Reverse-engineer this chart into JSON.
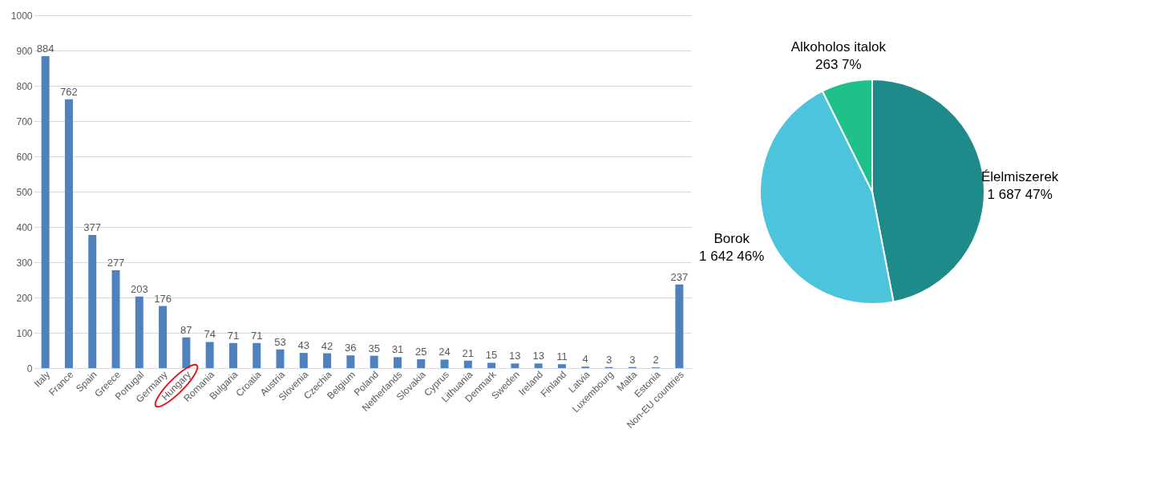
{
  "chart_data": [
    {
      "type": "bar",
      "categories": [
        "Italy",
        "France",
        "Spain",
        "Greece",
        "Portugal",
        "Germany",
        "Hungary",
        "Romania",
        "Bulgaria",
        "Croatia",
        "Austria",
        "Slovenia",
        "Czechia",
        "Belgium",
        "Poland",
        "Netherlands",
        "Slovakia",
        "Cyprus",
        "Lithuania",
        "Denmark",
        "Sweden",
        "Ireland",
        "Finland",
        "Latvia",
        "Luxembourg",
        "Malta",
        "Estonia",
        "Non-EU countries"
      ],
      "values": [
        884,
        762,
        377,
        277,
        203,
        176,
        87,
        74,
        71,
        71,
        53,
        43,
        42,
        36,
        35,
        31,
        25,
        24,
        21,
        15,
        13,
        13,
        11,
        4,
        3,
        3,
        2,
        237
      ],
      "color": "#4f81bd",
      "ylim": [
        0,
        1000
      ],
      "yticks": [
        0,
        100,
        200,
        300,
        400,
        500,
        600,
        700,
        800,
        900,
        1000
      ],
      "grid": "y",
      "data_labels": true
    },
    {
      "type": "pie",
      "categories": [
        "Élelmiszerek",
        "Borok",
        "Alkoholos italok"
      ],
      "values": [
        1687,
        1642,
        263
      ],
      "colors": [
        "#1e8a8a",
        "#4bc4dc",
        "#20c08a"
      ],
      "value_labels": [
        "1 687 47%",
        "1 642 46%",
        "263 7%"
      ]
    }
  ]
}
